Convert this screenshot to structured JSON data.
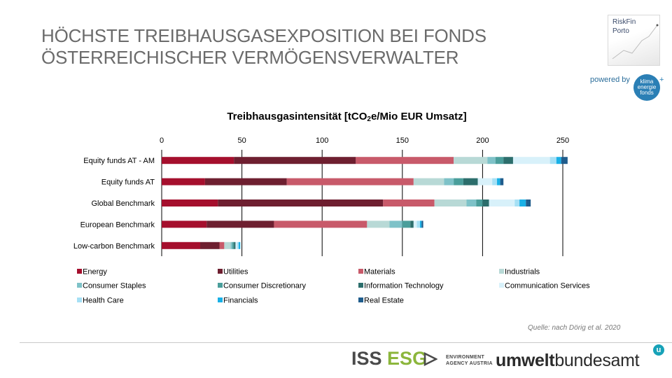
{
  "slide": {
    "title_line1": "HÖCHSTE TREIBHAUSGASEXPOSITION BEI FONDS",
    "title_line2": "ÖSTERREICHISCHER VERMÖGENSVERWALTER",
    "source": "Quelle: nach Dörig et al. 2020"
  },
  "logos": {
    "riskfin_line1": "RiskFin",
    "riskfin_line2": "Porto",
    "powered_by": "powered by",
    "klima_line1": "klima",
    "klima_line2": "energie",
    "klima_line3": "fonds",
    "klima_plus": "+",
    "iss": "ISS",
    "esg": "ESG",
    "env_line1": "ENVIRONMENT",
    "env_line2": "AGENCY AUSTRIA",
    "uba_bold": "umwelt",
    "uba_regular": "bundesamt",
    "uba_badge": "u"
  },
  "chart_data": {
    "type": "bar",
    "orientation": "horizontal",
    "stacked": true,
    "title_prefix": "Treibhausgasintensität [tCO",
    "title_sub": "2",
    "title_suffix": "e/Mio EUR Umsatz]",
    "xlim": [
      0,
      250
    ],
    "xticks": [
      0,
      50,
      100,
      150,
      200,
      250
    ],
    "grid": "vertical",
    "legend_position": "bottom",
    "categories": [
      "Equity funds AT - AM",
      "Equity funds AT",
      "Global Benchmark",
      "European Benchmark",
      "Low-carbon Benchmark"
    ],
    "series": [
      {
        "name": "Energy",
        "color": "#a50f2d",
        "values": [
          45,
          27,
          35,
          28,
          24
        ]
      },
      {
        "name": "Utilities",
        "color": "#6e1f30",
        "values": [
          76,
          51,
          103,
          42,
          12
        ]
      },
      {
        "name": "Materials",
        "color": "#c85a6a",
        "values": [
          61,
          79,
          32,
          58,
          3
        ]
      },
      {
        "name": "Industrials",
        "color": "#b8d9d6",
        "values": [
          21,
          19,
          20,
          14,
          4
        ]
      },
      {
        "name": "Consumer Staples",
        "color": "#7ec2c8",
        "values": [
          5,
          6,
          6,
          8,
          1
        ]
      },
      {
        "name": "Consumer Discretionary",
        "color": "#4a9e9b",
        "values": [
          5,
          6,
          4,
          5,
          1
        ]
      },
      {
        "name": "Information Technology",
        "color": "#2c6e6c",
        "values": [
          6,
          9,
          4,
          2,
          1
        ]
      },
      {
        "name": "Communication Services",
        "color": "#d8f1fa",
        "values": [
          23,
          9,
          16,
          2,
          1
        ]
      },
      {
        "name": "Health Care",
        "color": "#a6e0f5",
        "values": [
          4,
          3,
          3,
          2,
          1
        ]
      },
      {
        "name": "Financials",
        "color": "#19b0e6",
        "values": [
          3,
          2,
          4,
          1,
          1
        ]
      },
      {
        "name": "Real Estate",
        "color": "#1f5c8c",
        "values": [
          4,
          2,
          3,
          1,
          0
        ]
      }
    ]
  }
}
